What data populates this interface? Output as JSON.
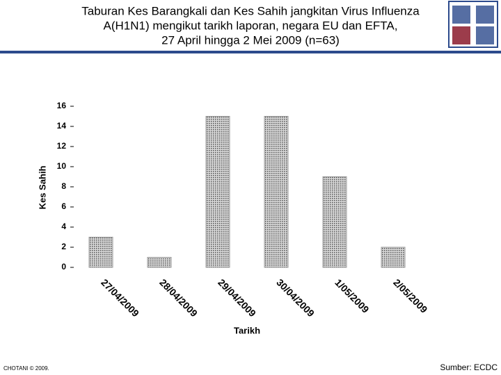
{
  "chart_data": {
    "type": "bar",
    "title": [
      "Taburan Kes Barangkali dan Kes Sahih jangkitan Virus Influenza",
      "A(H1N1) mengikut tarikh laporan, negara EU dan EFTA,",
      "27 April hingga 2 Mei 2009 (n=63)"
    ],
    "ylabel": "Kes Sahih",
    "xlabel": "Tarikh",
    "categories": [
      "27/04/2009",
      "28/04/2009",
      "29/04/2009",
      "30/04/2009",
      "1/05/2009",
      "2/05/2009"
    ],
    "values": [
      3,
      1,
      15,
      15,
      9,
      2
    ],
    "color": "#9a9a9a",
    "ylim": [
      0,
      16
    ],
    "yticks": [
      0,
      2,
      4,
      6,
      8,
      10,
      12,
      14,
      16
    ],
    "grid": false
  },
  "footer": {
    "left": "CHOTANI © 2009.",
    "right": "Sumber: ECDC"
  }
}
